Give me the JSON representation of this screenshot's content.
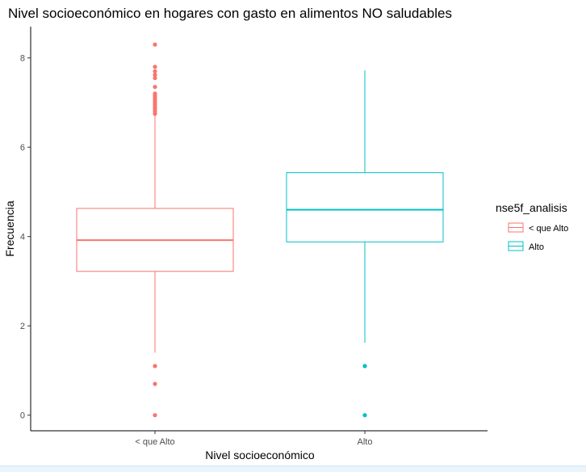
{
  "chart_data": {
    "type": "boxplot",
    "title": "Nivel socioeconómico en hogares con gasto en alimentos NO saludables",
    "xlabel": "Nivel socioeconómico",
    "ylabel": "Frecuencia",
    "ylim": [
      -0.35,
      8.7
    ],
    "yticks": [
      0,
      2,
      4,
      6,
      8
    ],
    "categories": [
      "< que Alto",
      "Alto"
    ],
    "legend": {
      "title": "nse5f_analisis",
      "position": "right",
      "entries": [
        "< que Alto",
        "Alto"
      ]
    },
    "grid": false,
    "series": [
      {
        "name": "< que Alto",
        "color": "#F8766D",
        "whisker_low": 1.4,
        "q1": 3.22,
        "median": 3.92,
        "q3": 4.63,
        "whisker_high": 6.72,
        "outliers": [
          0,
          0.7,
          1.1,
          6.75,
          6.8,
          6.85,
          6.9,
          6.95,
          7.0,
          7.05,
          7.1,
          7.15,
          7.2,
          7.35,
          7.55,
          7.62,
          7.7,
          7.8,
          8.3
        ]
      },
      {
        "name": "Alto",
        "color": "#00BFC4",
        "whisker_low": 1.62,
        "q1": 3.88,
        "median": 4.6,
        "q3": 5.43,
        "whisker_high": 7.72,
        "outliers": [
          0,
          1.1
        ]
      }
    ]
  }
}
